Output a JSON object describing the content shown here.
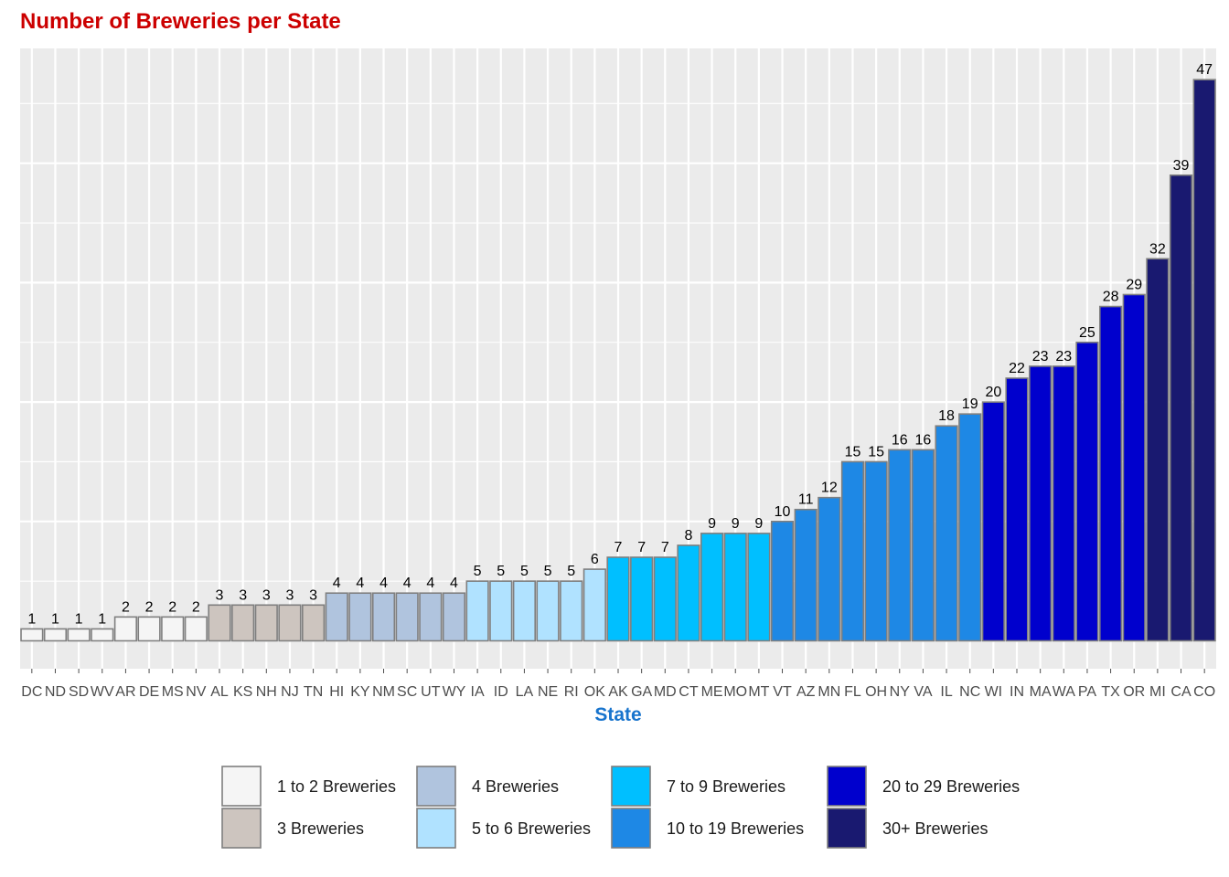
{
  "chart_data": {
    "type": "bar",
    "title": "Number of Breweries per State",
    "xlabel": "State",
    "ylabel": "",
    "ylim": [
      0,
      47
    ],
    "grid": true,
    "legend_position": "bottom",
    "categories": [
      "DC",
      "ND",
      "SD",
      "WV",
      "AR",
      "DE",
      "MS",
      "NV",
      "AL",
      "KS",
      "NH",
      "NJ",
      "TN",
      "HI",
      "KY",
      "NM",
      "SC",
      "UT",
      "WY",
      "IA",
      "ID",
      "LA",
      "NE",
      "RI",
      "OK",
      "AK",
      "GA",
      "MD",
      "CT",
      "ME",
      "MO",
      "MT",
      "VT",
      "AZ",
      "MN",
      "FL",
      "OH",
      "NY",
      "VA",
      "IL",
      "NC",
      "WI",
      "IN",
      "MA",
      "WA",
      "PA",
      "TX",
      "OR",
      "MI",
      "CA",
      "CO"
    ],
    "values": [
      1,
      1,
      1,
      1,
      2,
      2,
      2,
      2,
      3,
      3,
      3,
      3,
      3,
      4,
      4,
      4,
      4,
      4,
      4,
      5,
      5,
      5,
      5,
      5,
      6,
      7,
      7,
      7,
      8,
      9,
      9,
      9,
      10,
      11,
      12,
      15,
      15,
      16,
      16,
      18,
      19,
      20,
      22,
      23,
      23,
      25,
      28,
      29,
      32,
      39,
      47
    ],
    "groups": [
      {
        "label": "1 to 2 Breweries",
        "color": "#f5f5f5",
        "min": 1,
        "max": 2
      },
      {
        "label": "3 Breweries",
        "color": "#cdc5bf",
        "min": 3,
        "max": 3
      },
      {
        "label": "4 Breweries",
        "color": "#b0c4de",
        "min": 4,
        "max": 4
      },
      {
        "label": "5 to 6 Breweries",
        "color": "#b0e2ff",
        "min": 5,
        "max": 6
      },
      {
        "label": "7 to 9 Breweries",
        "color": "#00bfff",
        "min": 7,
        "max": 9
      },
      {
        "label": "10 to 19 Breweries",
        "color": "#1e88e5",
        "min": 10,
        "max": 19
      },
      {
        "label": "20 to 29 Breweries",
        "color": "#0000cd",
        "min": 20,
        "max": 29
      },
      {
        "label": "30+ Breweries",
        "color": "#191970",
        "min": 30,
        "max": 1000
      }
    ],
    "bar_outline_color": "#7f7f7f",
    "panel_background": "#ebebeb",
    "title_color": "#cc0000",
    "xlabel_color": "#1874cd"
  }
}
